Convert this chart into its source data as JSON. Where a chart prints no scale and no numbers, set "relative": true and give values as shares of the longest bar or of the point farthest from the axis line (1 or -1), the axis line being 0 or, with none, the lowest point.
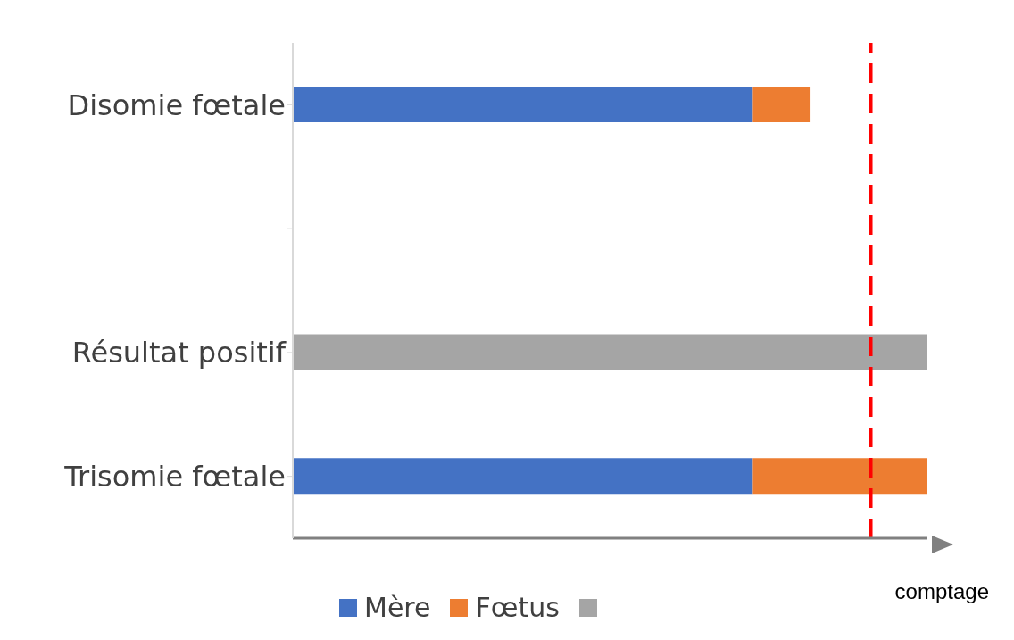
{
  "chart_data": {
    "type": "bar",
    "orientation": "horizontal",
    "stacked": true,
    "relative": true,
    "xlabel": "comptage",
    "categories": [
      "Disomie fœtale",
      null,
      "Résultat positif",
      "Trisomie fœtale"
    ],
    "series": [
      {
        "name": "Mère",
        "color": "#4472c4",
        "values": [
          0.726,
          null,
          null,
          0.726
        ]
      },
      {
        "name": "Fœtus",
        "color": "#ed7d31",
        "values": [
          0.091,
          null,
          null,
          0.274
        ]
      },
      {
        "color": "#a5a5a5",
        "values": [
          null,
          null,
          1.0,
          null
        ]
      }
    ],
    "ref_lines": [
      {
        "axis": "x",
        "value": 0.912,
        "color": "#ff0000",
        "line_style": "dashed"
      }
    ],
    "legend": "bottom",
    "grid": false
  }
}
